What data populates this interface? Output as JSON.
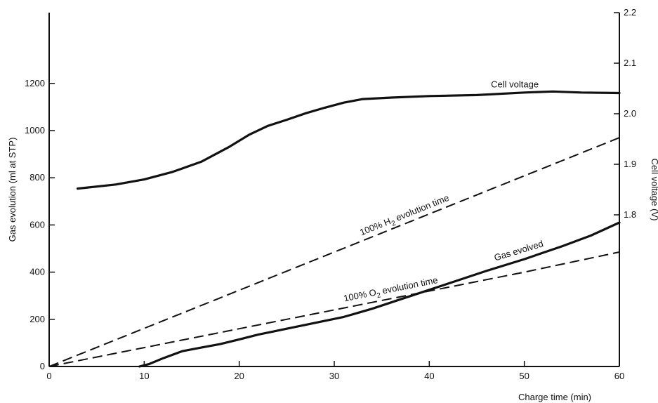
{
  "chart_data": {
    "type": "line",
    "x_axis": {
      "label": "Charge time (min)",
      "range": [
        0,
        60
      ],
      "ticks": [
        0,
        10,
        20,
        30,
        40,
        50,
        60
      ]
    },
    "y_left": {
      "label": "Gas evolution (ml at STP)",
      "range": [
        0,
        1500
      ],
      "ticks": [
        0,
        200,
        400,
        600,
        800,
        1000,
        1200
      ]
    },
    "y_right": {
      "label": "Cell voltage (V)",
      "range": [
        1.5,
        2.2
      ],
      "ticks": [
        1.8,
        1.9,
        2.0,
        2.1,
        2.2
      ],
      "tick_labels": [
        "1.8",
        "1.9",
        "2.0",
        "2.1",
        "2.2"
      ]
    },
    "series": [
      {
        "name": "Cell voltage",
        "axis": "right",
        "style": "solid",
        "x": [
          3,
          7,
          10,
          13,
          16,
          19,
          21,
          23,
          25,
          27,
          29,
          31,
          33,
          36,
          40,
          45,
          50,
          53,
          56,
          60
        ],
        "y": [
          1.852,
          1.86,
          1.87,
          1.885,
          1.905,
          1.935,
          1.958,
          1.976,
          1.988,
          2.001,
          2.012,
          2.022,
          2.029,
          2.032,
          2.035,
          2.037,
          2.042,
          2.044,
          2.042,
          2.041
        ]
      },
      {
        "name": "Gas evolved",
        "axis": "left",
        "style": "solid",
        "x": [
          9.5,
          10.5,
          12,
          14,
          16,
          18,
          20,
          22,
          25,
          28,
          31,
          34,
          37,
          40,
          43,
          46,
          50,
          54,
          57,
          60
        ],
        "y": [
          0,
          10,
          35,
          65,
          80,
          95,
          115,
          135,
          160,
          185,
          210,
          245,
          285,
          325,
          365,
          405,
          455,
          510,
          555,
          610
        ]
      },
      {
        "name": "100% H2 evolution time",
        "axis": "left",
        "style": "dashed",
        "x": [
          0,
          60
        ],
        "y": [
          0,
          970
        ]
      },
      {
        "name": "100% O2 evolution time",
        "axis": "left",
        "style": "dashed",
        "x": [
          0,
          10,
          20,
          30,
          40,
          50,
          60
        ],
        "y": [
          0,
          80,
          160,
          240,
          320,
          400,
          485
        ]
      }
    ],
    "annotations": [
      {
        "series": "Cell voltage",
        "text": "Cell voltage"
      },
      {
        "series": "Gas evolved",
        "text": "Gas evolved"
      },
      {
        "series": "100% H2 evolution time",
        "text_before": "100% H",
        "subscript": "2",
        "text_after": " evolution time"
      },
      {
        "series": "100% O2 evolution time",
        "text_before": "100% O",
        "subscript": "2",
        "text_after": " evolution time"
      }
    ],
    "grid": false,
    "legend": "none"
  }
}
